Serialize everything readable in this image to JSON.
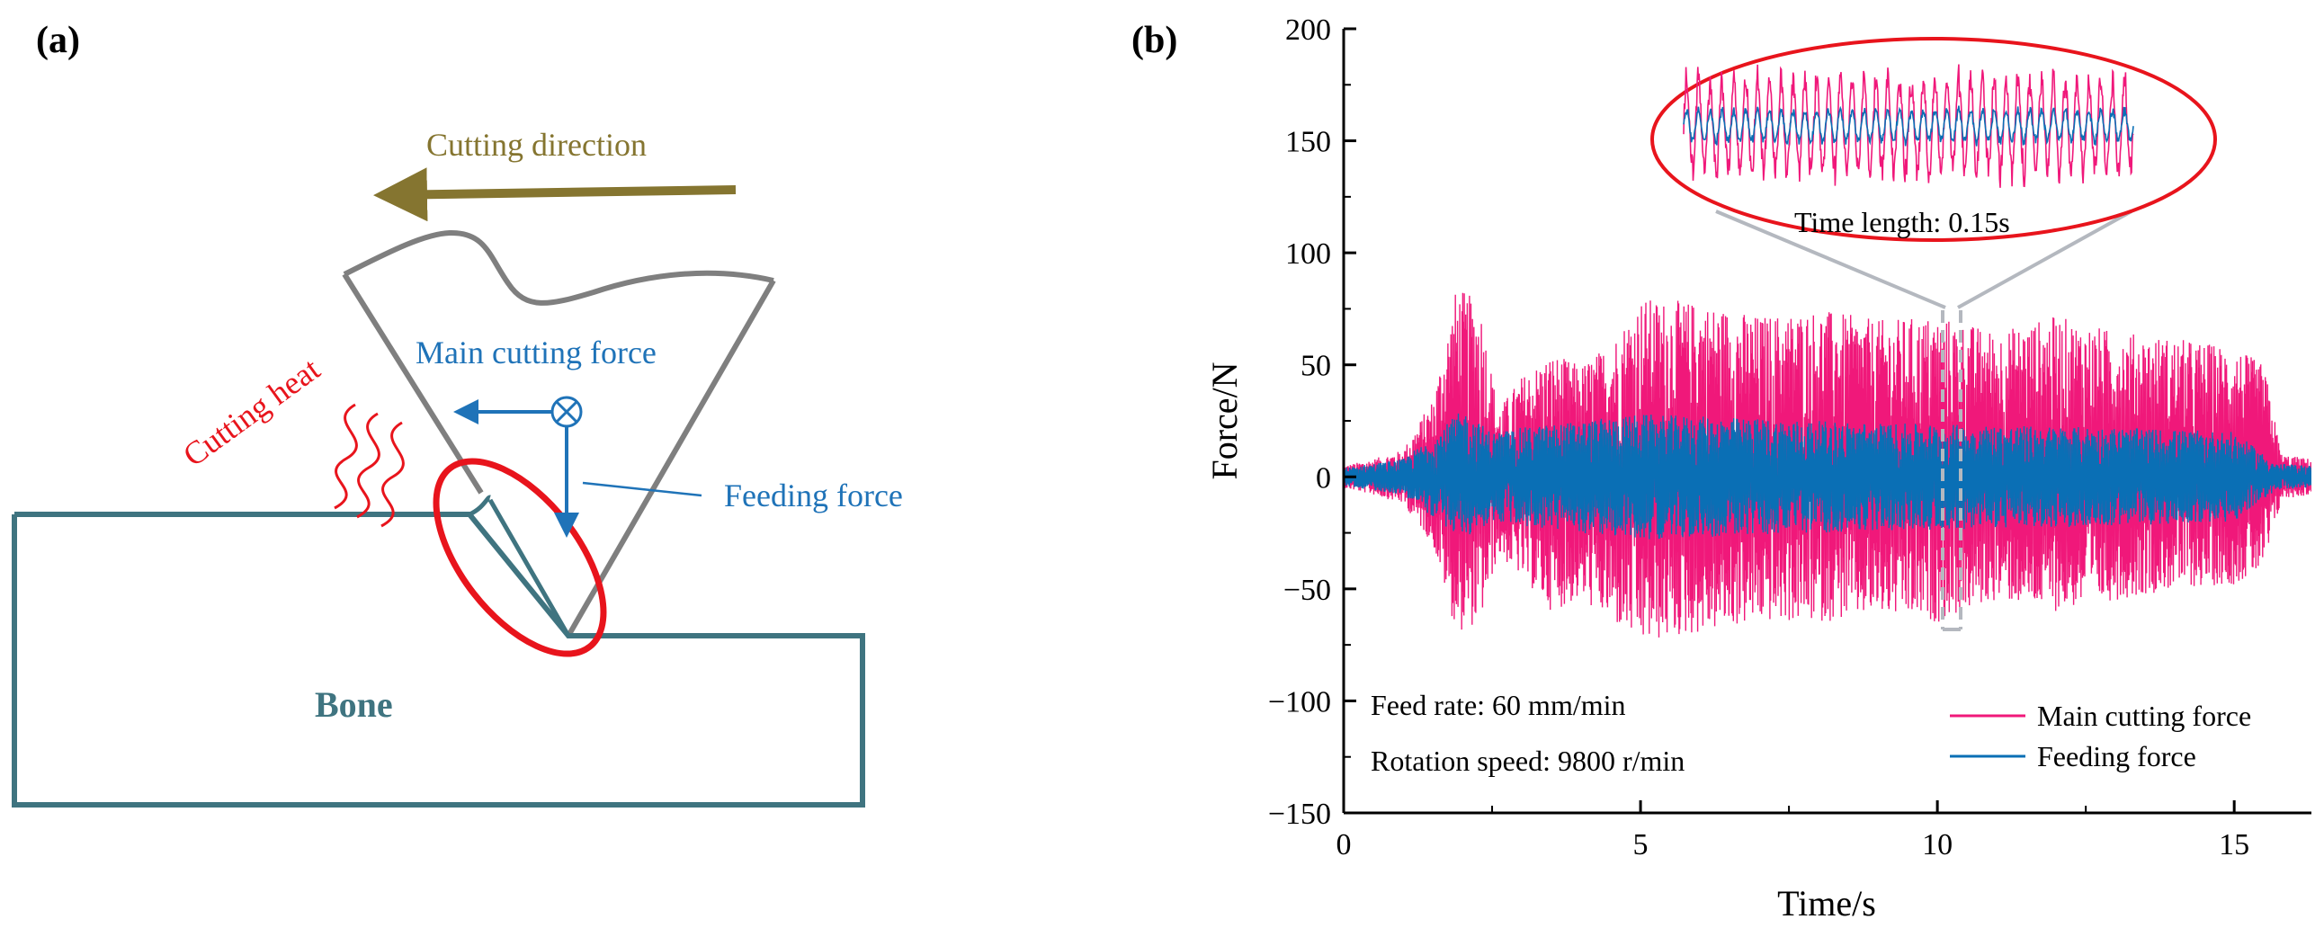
{
  "panel_a": {
    "label": "(a)",
    "cutting_direction": "Cutting direction",
    "main_cutting_force": "Main cutting force",
    "feeding_force": "Feeding force",
    "cutting_heat": "Cutting heat",
    "bone": "Bone",
    "colors": {
      "direction": "#857530",
      "force": "#1f73b8",
      "heat": "#e8141c",
      "tool": "#7f7f7f",
      "bone": "#3f7480"
    }
  },
  "panel_b": {
    "label": "(b)",
    "inset_label": "Time length: 0.15s",
    "feed_rate": "Feed rate: 60 mm/min",
    "rotation_speed": "Rotation speed: 9800 r/min",
    "colors": {
      "main": "#f0187a",
      "feed": "#0a6fb5",
      "inset_ring": "#e8141c",
      "connector": "#b4b8bf"
    }
  },
  "chart_data": {
    "type": "line",
    "xlabel": "Time/s",
    "ylabel": "Force/N",
    "xlim": [
      0,
      16.3
    ],
    "ylim": [
      -150,
      200
    ],
    "x_ticks": [
      "0",
      "5",
      "10",
      "15"
    ],
    "y_ticks": [
      "200",
      "150",
      "100",
      "50",
      "0",
      "−50",
      "−100",
      "−150"
    ],
    "series": [
      {
        "name": "Main cutting force",
        "color": "#f0187a",
        "envelope_t": [
          0,
          0.5,
          1.0,
          1.5,
          1.9,
          2.3,
          2.6,
          3.0,
          3.5,
          4.0,
          4.5,
          5.0,
          6.0,
          7.0,
          8.0,
          9.0,
          10.0,
          11.0,
          12.0,
          13.0,
          14.0,
          15.0,
          15.5,
          15.8,
          16.3
        ],
        "envelope_upper": [
          5,
          8,
          12,
          35,
          85,
          78,
          30,
          45,
          55,
          50,
          60,
          80,
          78,
          72,
          75,
          70,
          72,
          65,
          72,
          65,
          62,
          58,
          50,
          10,
          8
        ],
        "envelope_lower": [
          -5,
          -8,
          -12,
          -30,
          -70,
          -65,
          -35,
          -45,
          -60,
          -55,
          -65,
          -75,
          -70,
          -65,
          -65,
          -62,
          -65,
          -55,
          -60,
          -55,
          -50,
          -48,
          -42,
          -10,
          -8
        ]
      },
      {
        "name": "Feeding force",
        "color": "#0a6fb5",
        "envelope_t": [
          0,
          0.5,
          1.0,
          1.5,
          2.0,
          2.5,
          3.0,
          4.0,
          5.0,
          7.0,
          9.0,
          11.0,
          13.0,
          15.0,
          15.7,
          16.3
        ],
        "envelope_upper": [
          4,
          6,
          8,
          18,
          30,
          20,
          22,
          25,
          28,
          26,
          24,
          23,
          22,
          20,
          6,
          5
        ],
        "envelope_lower": [
          -4,
          -6,
          -8,
          -18,
          -28,
          -20,
          -22,
          -25,
          -28,
          -26,
          -24,
          -23,
          -22,
          -20,
          -6,
          -5
        ]
      }
    ],
    "legend": {
      "position": "bottom-right",
      "entries": [
        "Main cutting force",
        "Feeding force"
      ]
    }
  }
}
